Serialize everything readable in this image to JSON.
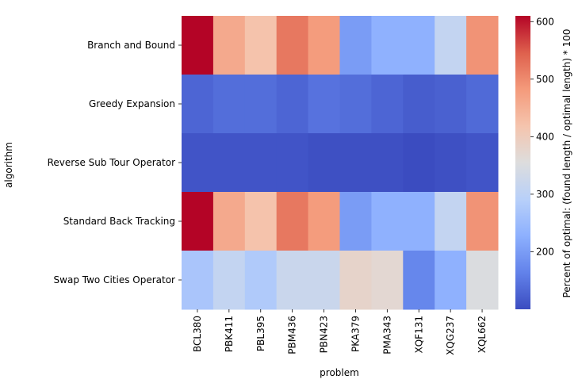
{
  "chart_data": {
    "type": "heatmap",
    "title": "",
    "xlabel": "problem",
    "ylabel": "algorithm",
    "x_categories": [
      "BCL380",
      "PBK411",
      "PBL395",
      "PBM436",
      "PBN423",
      "PKA379",
      "PMA343",
      "XQF131",
      "XQG237",
      "XQL662"
    ],
    "y_categories": [
      "Branch and Bound",
      "Greedy Expansion",
      "Reverse Sub Tour Operator",
      "Standard Back Tracking",
      "Swap Two Cities Operator"
    ],
    "values": [
      [
        610,
        460,
        420,
        520,
        480,
        200,
        230,
        230,
        310,
        490
      ],
      [
        130,
        140,
        140,
        130,
        145,
        140,
        130,
        120,
        125,
        135
      ],
      [
        110,
        110,
        110,
        110,
        105,
        105,
        105,
        100,
        105,
        110
      ],
      [
        610,
        460,
        420,
        520,
        480,
        200,
        230,
        230,
        310,
        490
      ],
      [
        270,
        310,
        280,
        320,
        320,
        380,
        370,
        170,
        230,
        350
      ]
    ],
    "colorscale": "coolwarm",
    "vmin": 100,
    "vmax": 610,
    "colorbar": {
      "label": "Percent of optimal: (found length / optimal length) * 100",
      "ticks": [
        200,
        300,
        400,
        500,
        600
      ]
    }
  }
}
